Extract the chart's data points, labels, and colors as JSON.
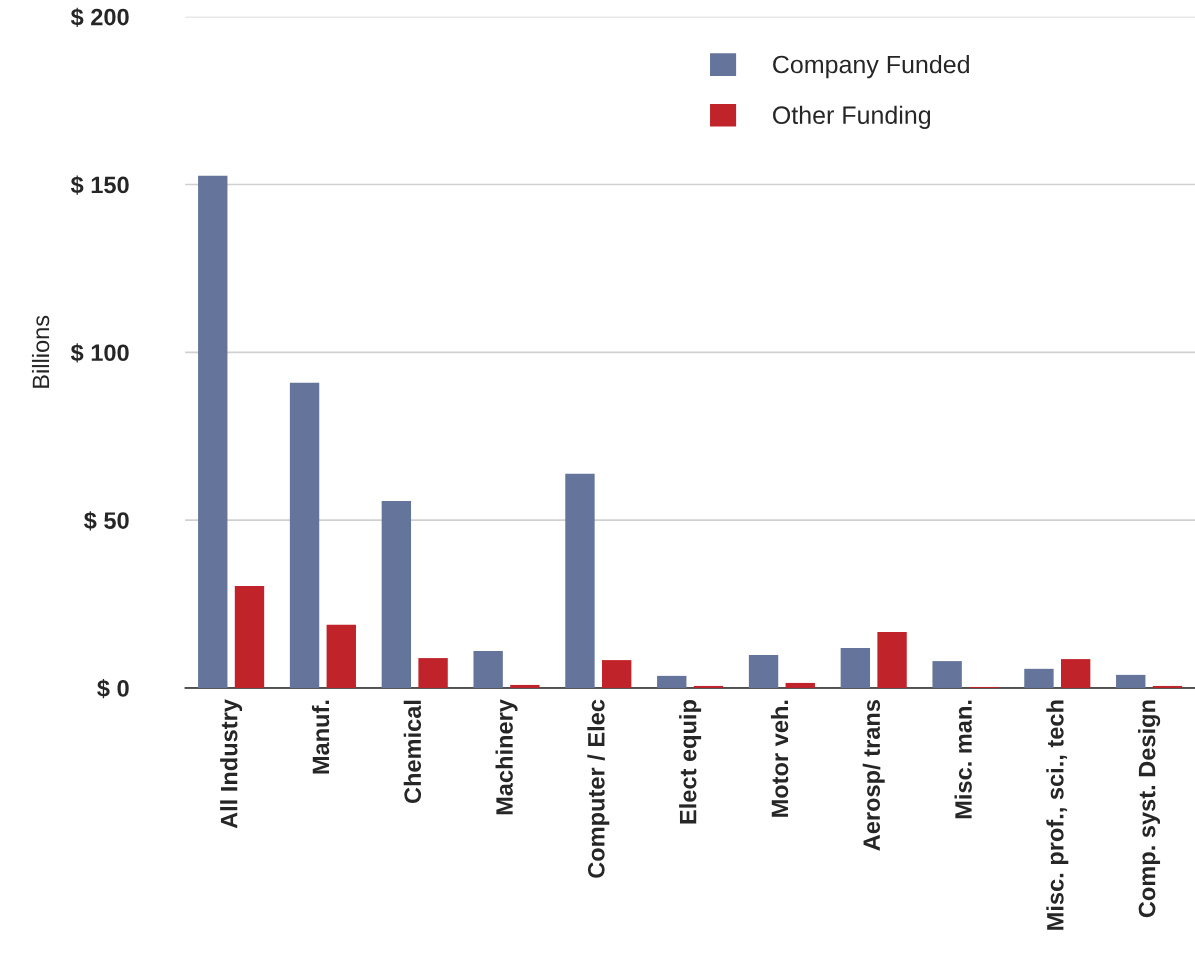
{
  "chart_data": {
    "type": "bar",
    "ylabel": "Billions",
    "categories": [
      "All Industry",
      "Manuf.",
      "Chemical",
      "Machinery",
      "Computer / Elec",
      "Elect equip",
      "Motor veh.",
      "Aerosp/ trans",
      "Misc. man.",
      "Misc. prof., sci., tech",
      "Comp. syst. Design"
    ],
    "series": [
      {
        "name": "Company Funded",
        "color": "#65749a",
        "values": [
          152.6,
          90.9,
          55.7,
          11.0,
          63.8,
          3.6,
          9.8,
          11.9,
          8.0,
          5.7,
          3.9
        ]
      },
      {
        "name": "Other Funding",
        "color": "#c0232a",
        "values": [
          30.4,
          18.8,
          8.9,
          0.9,
          8.3,
          0.6,
          1.5,
          16.7,
          0.3,
          8.6,
          0.6
        ]
      }
    ],
    "ylim": [
      0,
      200
    ],
    "yticks": [
      {
        "value": 0,
        "label": "$ 0"
      },
      {
        "value": 50,
        "label": "$ 50"
      },
      {
        "value": 100,
        "label": "$ 100"
      },
      {
        "value": 150,
        "label": "$ 150"
      },
      {
        "value": 200,
        "label": "$ 200"
      }
    ],
    "grid": "y",
    "legend": "top right"
  }
}
